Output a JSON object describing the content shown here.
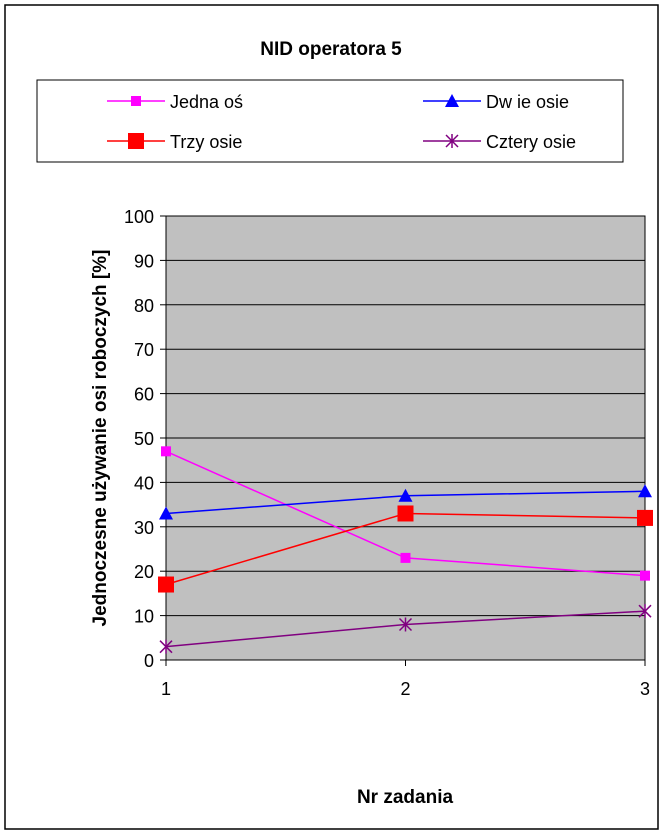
{
  "chart_data": {
    "type": "line",
    "title": "NID operatora 5",
    "xlabel": "Nr zadania",
    "ylabel": "Jednoczesne używanie osi roboczych [%]",
    "categories": [
      "1",
      "2",
      "3"
    ],
    "ylim": [
      0,
      100
    ],
    "yticks": [
      "0",
      "10",
      "20",
      "30",
      "40",
      "50",
      "60",
      "70",
      "80",
      "90",
      "100"
    ],
    "grid": true,
    "legend_position": "top",
    "plot_background": "#c0c0c0",
    "series": [
      {
        "name": "Jedna oś",
        "values": [
          47,
          23,
          19
        ],
        "color": "#ff00ff",
        "marker": "square-small"
      },
      {
        "name": "Dw ie osie",
        "values": [
          33,
          37,
          38
        ],
        "color": "#0000ff",
        "marker": "triangle"
      },
      {
        "name": "Trzy osie",
        "values": [
          17,
          33,
          32
        ],
        "color": "#ff0000",
        "marker": "square-large"
      },
      {
        "name": "Cztery osie",
        "values": [
          3,
          8,
          11
        ],
        "color": "#800080",
        "marker": "star"
      }
    ]
  }
}
